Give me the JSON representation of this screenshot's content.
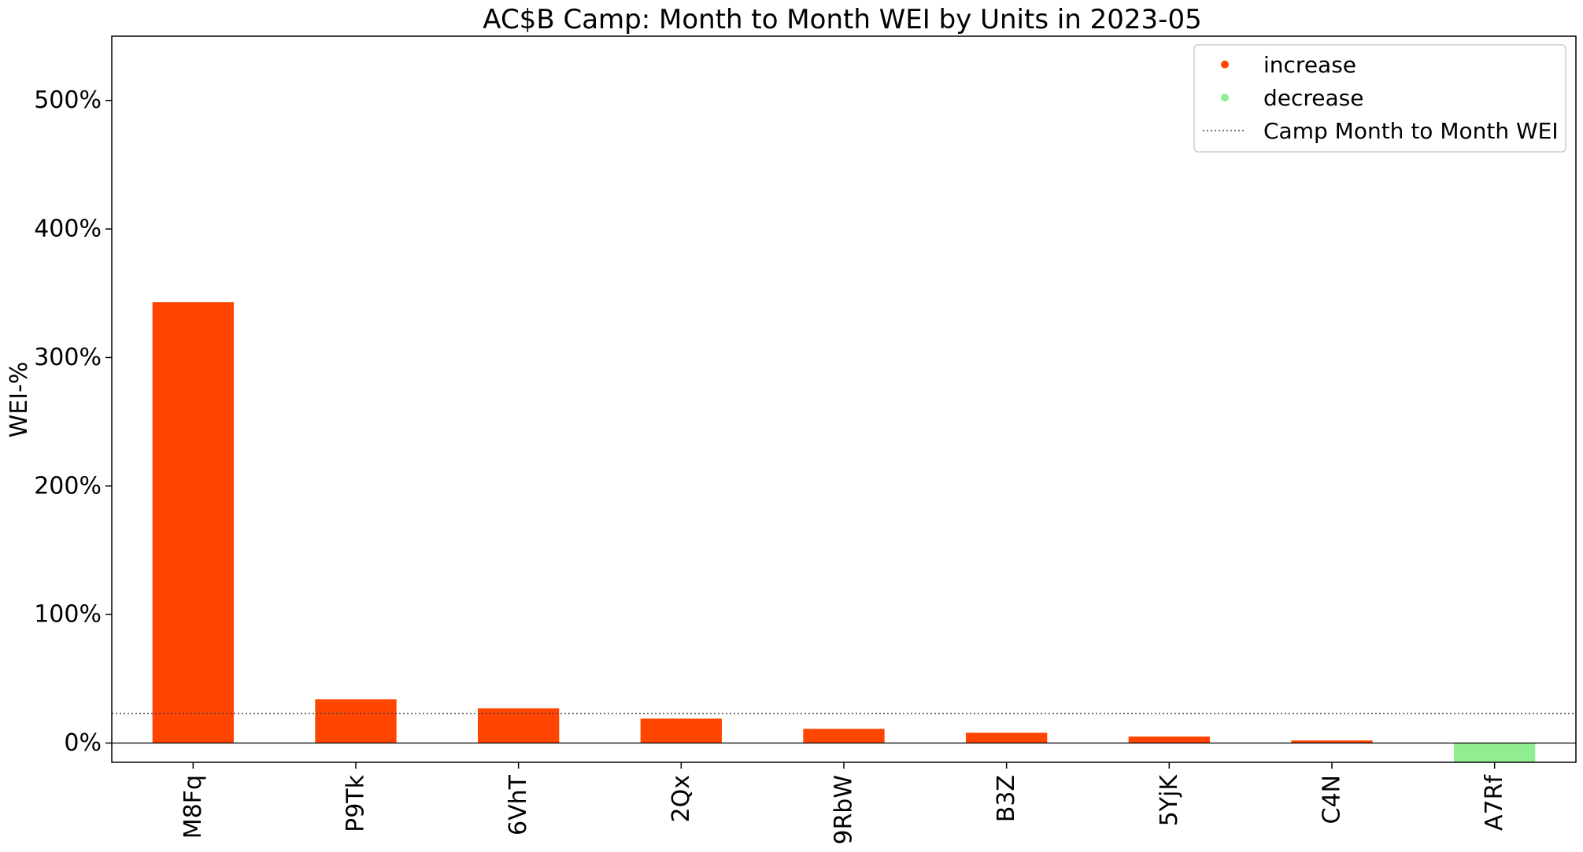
{
  "chart_data": {
    "type": "bar",
    "title": "AC$B Camp: Month to Month WEI by Units in 2023-05",
    "xlabel": "",
    "ylabel": "WEI-%",
    "categories": [
      "M8Fq",
      "P9Tk",
      "6VhT",
      "2Qx",
      "9RbW",
      "B3Z",
      "5YjK",
      "C4N",
      "A7Rf"
    ],
    "values": [
      343,
      34,
      27,
      19,
      11,
      8,
      5,
      2,
      -15
    ],
    "ylim": [
      -15,
      550
    ],
    "yticks": [
      0,
      100,
      200,
      300,
      400,
      500
    ],
    "ytick_labels": [
      "0%",
      "100%",
      "200%",
      "300%",
      "400%",
      "500%"
    ],
    "reference_line": {
      "name": "Camp Month to Month WEI",
      "value": 23,
      "style": "dotted"
    },
    "zero_line": true,
    "grid": false,
    "legend": {
      "placement": "top-right",
      "entries": [
        {
          "label": "increase",
          "marker": "dot",
          "color": "#ff4500"
        },
        {
          "label": "decrease",
          "marker": "dot",
          "color": "#90ee90"
        },
        {
          "label": "Camp Month to Month WEI",
          "marker": "dotted-line",
          "color": "#404040"
        }
      ]
    },
    "colors": {
      "increase": "#ff4500",
      "decrease": "#90ee90"
    }
  }
}
